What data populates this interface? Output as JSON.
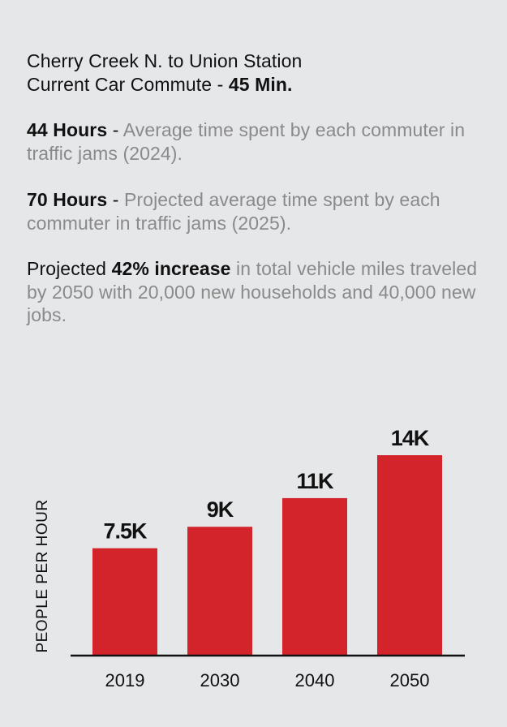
{
  "intro": {
    "line1": "Cherry Creek N. to Union Station",
    "line2_prefix": "Current Car Commute - ",
    "line2_bold": "45 Min."
  },
  "stat1": {
    "bold": "44 Hours",
    "sep": " - ",
    "text": "Average time spent by each commuter in traffic jams (2024)."
  },
  "stat2": {
    "bold": "70 Hours",
    "sep": " - ",
    "text": "Projected average time spent by each commuter in traffic jams (2025)."
  },
  "stat3": {
    "prefix": "Projected ",
    "bold": "42% increase",
    "text": " in total vehicle miles traveled by 2050 with 20,000 new households and 40,000 new jobs."
  },
  "chart_data": {
    "type": "bar",
    "categories": [
      "2019",
      "2030",
      "2040",
      "2050"
    ],
    "values": [
      7500,
      9000,
      11000,
      14000
    ],
    "data_labels": [
      "7.5K",
      "9K",
      "11K",
      "14K"
    ],
    "title": "",
    "xlabel": "",
    "ylabel": "PEOPLE PER HOUR",
    "ylim": [
      0,
      15000
    ],
    "grid": false,
    "bar_color": "#d3242b"
  }
}
